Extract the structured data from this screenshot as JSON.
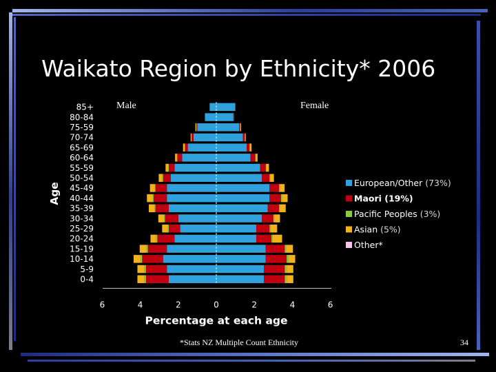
{
  "slide": {
    "title": "Waikato Region by Ethnicity* 2006",
    "male_label": "Male",
    "female_label": "Female",
    "footnote": "*Stats NZ Multiple Count Ethnicity",
    "page_number": "34"
  },
  "colors": {
    "background": "#000000",
    "frame_dark": "#1c2c80",
    "frame_mid": "#4a63b8",
    "frame_light": "#9fb6ee",
    "frame_gray": "#7a7f8a"
  },
  "chart_data": {
    "type": "bar",
    "orientation": "horizontal-population-pyramid",
    "xlabel": "Percentage at each age",
    "ylabel": "Age",
    "xlim": [
      -6,
      6
    ],
    "xticks": [
      6,
      4,
      2,
      0,
      2,
      4,
      6
    ],
    "categories": [
      "85+",
      "80-84",
      "75-59",
      "70-74",
      "65-69",
      "60-64",
      "55-59",
      "50-54",
      "45-49",
      "40-44",
      "35-39",
      "30-34",
      "25-29",
      "20-24",
      "15-19",
      "10-14",
      "5-9",
      "0-4"
    ],
    "series": [
      {
        "name": "European/Other",
        "pct": "(73%)",
        "color": "#2fa2dd",
        "male": [
          0.35,
          0.6,
          1.0,
          1.2,
          1.5,
          1.8,
          2.2,
          2.4,
          2.6,
          2.6,
          2.5,
          2.0,
          1.9,
          2.2,
          2.6,
          2.8,
          2.6,
          2.5
        ],
        "female": [
          1.0,
          0.9,
          1.2,
          1.4,
          1.6,
          1.8,
          2.3,
          2.4,
          2.8,
          2.8,
          2.7,
          2.4,
          2.1,
          2.1,
          2.6,
          2.6,
          2.5,
          2.5
        ]
      },
      {
        "name": "Maori",
        "pct": "(19%)",
        "color": "#c00010",
        "male": [
          0.0,
          0.0,
          0.05,
          0.1,
          0.15,
          0.25,
          0.3,
          0.4,
          0.6,
          0.7,
          0.7,
          0.7,
          0.6,
          0.9,
          1.0,
          1.1,
          1.1,
          1.2
        ],
        "female": [
          0.0,
          0.05,
          0.05,
          0.1,
          0.15,
          0.25,
          0.3,
          0.4,
          0.5,
          0.6,
          0.6,
          0.6,
          0.7,
          0.8,
          1.0,
          1.1,
          1.1,
          1.1
        ]
      },
      {
        "name": "Pacific Peoples",
        "pct": "(3%)",
        "color": "#8acb3f",
        "male": [
          0.0,
          0.0,
          0.0,
          0.0,
          0.0,
          0.02,
          0.02,
          0.03,
          0.04,
          0.05,
          0.05,
          0.05,
          0.05,
          0.06,
          0.08,
          0.1,
          0.1,
          0.1
        ],
        "female": [
          0.0,
          0.0,
          0.0,
          0.0,
          0.0,
          0.02,
          0.02,
          0.03,
          0.04,
          0.05,
          0.05,
          0.05,
          0.05,
          0.06,
          0.08,
          0.1,
          0.1,
          0.1
        ]
      },
      {
        "name": "Asian",
        "pct": "(5%)",
        "color": "#f2b21a",
        "male": [
          0.0,
          0.0,
          0.05,
          0.05,
          0.1,
          0.1,
          0.15,
          0.2,
          0.25,
          0.3,
          0.3,
          0.3,
          0.3,
          0.3,
          0.35,
          0.35,
          0.35,
          0.35
        ],
        "female": [
          0.0,
          0.0,
          0.05,
          0.05,
          0.1,
          0.1,
          0.15,
          0.2,
          0.25,
          0.3,
          0.3,
          0.3,
          0.35,
          0.5,
          0.35,
          0.35,
          0.35,
          0.35
        ]
      },
      {
        "name": "Other*",
        "pct": "",
        "color": "#f3c5e8",
        "male": [
          0.0,
          0.0,
          0.0,
          0.0,
          0.0,
          0.0,
          0.0,
          0.0,
          0.0,
          0.0,
          0.0,
          0.0,
          0.0,
          0.0,
          0.0,
          0.0,
          0.0,
          0.0
        ],
        "female": [
          0.0,
          0.0,
          0.0,
          0.0,
          0.0,
          0.0,
          0.0,
          0.0,
          0.0,
          0.0,
          0.0,
          0.0,
          0.0,
          0.0,
          0.0,
          0.0,
          0.0,
          0.0
        ]
      }
    ],
    "legend_position": "right",
    "grid": false
  }
}
